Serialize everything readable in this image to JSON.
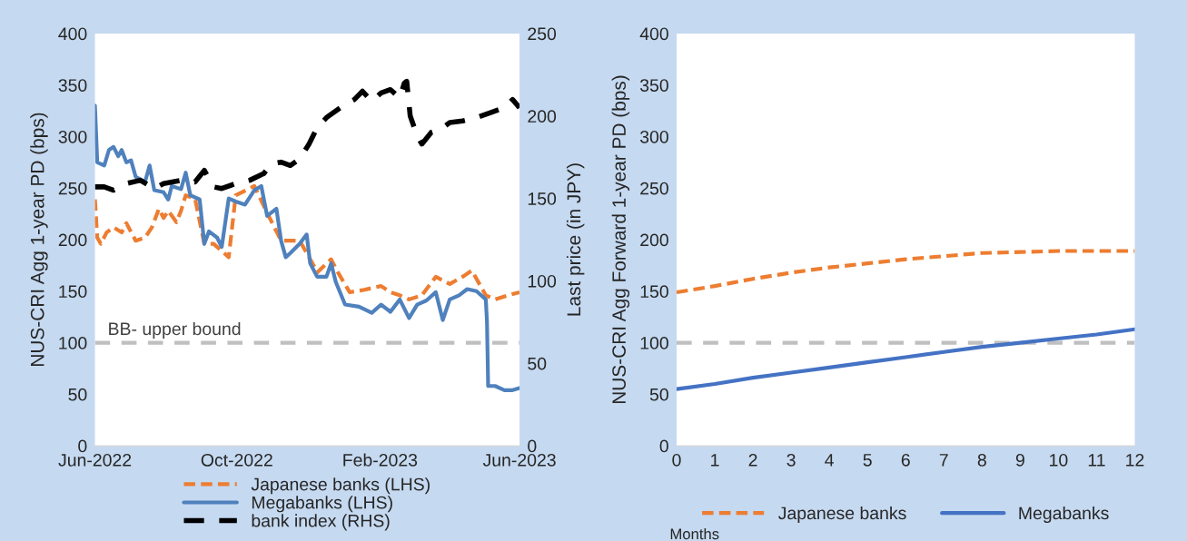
{
  "chart_data": [
    {
      "type": "line",
      "ylabel": "NUS-CRI Agg 1-year PD (bps)",
      "y2label": "Last price (in JPY)",
      "xlim": [
        "2022-06-01",
        "2023-06-01"
      ],
      "xticks": [
        {
          "value": "2022-06-01",
          "label": "Jun-2022"
        },
        {
          "value": "2022-10-01",
          "label": "Oct-2022"
        },
        {
          "value": "2023-02-01",
          "label": "Feb-2023"
        },
        {
          "value": "2023-06-01",
          "label": "Jun-2023"
        }
      ],
      "ylim": [
        0,
        400
      ],
      "yticks": [
        0,
        50,
        100,
        150,
        200,
        250,
        300,
        350,
        400
      ],
      "y2lim": [
        0,
        250
      ],
      "y2ticks": [
        0,
        50,
        100,
        150,
        200,
        250
      ],
      "grid": false,
      "legend": "bottom",
      "ref_lines": [
        {
          "axis": "y",
          "value": 100,
          "label": "BB- upper bound",
          "color": "#bfbfbf",
          "line_style": "dashed"
        }
      ],
      "series": [
        {
          "name": "Japanese banks (LHS)",
          "color": "#ed7d31",
          "line_style": "dashed",
          "x": [
            "2022-06-01",
            "2022-06-03",
            "2022-06-06",
            "2022-06-11",
            "2022-06-17",
            "2022-06-24",
            "2022-06-28",
            "2022-07-06",
            "2022-07-14",
            "2022-07-20",
            "2022-07-26",
            "2022-07-30",
            "2022-08-03",
            "2022-08-10",
            "2022-08-14",
            "2022-08-18",
            "2022-08-26",
            "2022-09-03",
            "2022-09-11",
            "2022-09-24",
            "2022-09-30",
            "2022-10-16",
            "2022-10-27",
            "2022-11-08",
            "2022-11-24",
            "2022-12-06",
            "2022-12-09",
            "2022-12-21",
            "2022-12-27",
            "2023-01-06",
            "2023-01-17",
            "2023-02-02",
            "2023-02-10",
            "2023-02-18",
            "2023-02-26",
            "2023-03-09",
            "2023-03-21",
            "2023-04-02",
            "2023-04-13",
            "2023-04-21",
            "2023-05-03",
            "2023-05-11",
            "2023-05-22",
            "2023-06-01"
          ],
          "values": [
            239,
            202,
            196,
            207,
            212,
            207,
            216,
            199,
            202,
            212,
            230,
            221,
            228,
            217,
            228,
            243,
            240,
            196,
            196,
            183,
            243,
            252,
            226,
            199,
            199,
            175,
            168,
            181,
            168,
            149,
            151,
            155,
            149,
            146,
            142,
            146,
            164,
            157,
            164,
            170,
            146,
            142,
            146,
            149
          ]
        },
        {
          "name": "Megabanks (LHS)",
          "color": "#4f81bd",
          "line_style": "solid",
          "x": [
            "2022-06-01",
            "2022-06-03",
            "2022-06-09",
            "2022-06-13",
            "2022-06-17",
            "2022-06-21",
            "2022-06-24",
            "2022-06-28",
            "2022-07-02",
            "2022-07-06",
            "2022-07-14",
            "2022-07-18",
            "2022-07-22",
            "2022-07-30",
            "2022-08-03",
            "2022-08-06",
            "2022-08-14",
            "2022-08-18",
            "2022-08-22",
            "2022-08-30",
            "2022-09-03",
            "2022-09-07",
            "2022-09-14",
            "2022-09-18",
            "2022-09-24",
            "2022-09-30",
            "2022-10-08",
            "2022-10-16",
            "2022-10-22",
            "2022-10-27",
            "2022-11-04",
            "2022-11-08",
            "2022-11-12",
            "2022-11-16",
            "2022-11-24",
            "2022-11-30",
            "2022-12-03",
            "2022-12-09",
            "2022-12-17",
            "2022-12-21",
            "2022-12-25",
            "2023-01-02",
            "2023-01-14",
            "2023-01-25",
            "2023-02-02",
            "2023-02-10",
            "2023-02-18",
            "2023-02-26",
            "2023-03-05",
            "2023-03-13",
            "2023-03-21",
            "2023-03-27",
            "2023-04-02",
            "2023-04-10",
            "2023-04-17",
            "2023-04-25",
            "2023-05-03",
            "2023-05-04",
            "2023-05-05",
            "2023-05-11",
            "2023-05-19",
            "2023-05-26",
            "2023-06-01"
          ],
          "values": [
            330,
            275,
            272,
            287,
            290,
            281,
            287,
            275,
            277,
            261,
            256,
            272,
            248,
            246,
            239,
            252,
            249,
            265,
            243,
            239,
            196,
            208,
            202,
            193,
            240,
            237,
            234,
            248,
            252,
            223,
            230,
            199,
            183,
            187,
            196,
            205,
            177,
            164,
            164,
            177,
            159,
            137,
            135,
            129,
            137,
            130,
            142,
            124,
            137,
            141,
            149,
            122,
            142,
            146,
            152,
            150,
            142,
            120,
            58,
            58,
            54,
            54,
            56
          ]
        },
        {
          "name": "bank index (RHS)",
          "color": "#000000",
          "line_style": "dashed",
          "axis": "y2",
          "x": [
            "2022-06-01",
            "2022-06-09",
            "2022-06-17",
            "2022-06-28",
            "2022-07-10",
            "2022-07-22",
            "2022-07-30",
            "2022-08-14",
            "2022-08-26",
            "2022-09-03",
            "2022-09-11",
            "2022-09-18",
            "2022-09-30",
            "2022-10-12",
            "2022-10-24",
            "2022-10-31",
            "2022-11-08",
            "2022-11-16",
            "2022-11-24",
            "2022-12-02",
            "2022-12-09",
            "2022-12-17",
            "2022-12-25",
            "2023-01-02",
            "2023-01-10",
            "2023-01-17",
            "2023-01-25",
            "2023-02-02",
            "2023-02-10",
            "2023-02-18",
            "2023-02-22",
            "2023-02-24",
            "2023-02-27",
            "2023-03-05",
            "2023-03-09",
            "2023-03-17",
            "2023-03-25",
            "2023-04-02",
            "2023-04-13",
            "2023-04-25",
            "2023-05-07",
            "2023-05-19",
            "2023-05-26",
            "2023-06-01"
          ],
          "values": [
            157,
            157,
            155,
            159,
            161,
            156,
            159,
            161,
            160,
            167,
            157,
            156,
            159,
            161,
            165,
            171,
            172,
            170,
            174,
            183,
            193,
            199,
            203,
            207,
            210,
            215,
            209,
            214,
            216,
            211,
            220,
            221,
            200,
            188,
            183,
            190,
            192,
            196,
            197,
            199,
            202,
            205,
            210,
            205
          ]
        }
      ]
    },
    {
      "type": "line",
      "ylabel": "NUS-CRI Agg Forward 1-year PD (bps)",
      "xlabel": "Months",
      "xlim": [
        0,
        12
      ],
      "xticks": [
        0,
        1,
        2,
        3,
        4,
        5,
        6,
        7,
        8,
        9,
        10,
        11,
        12
      ],
      "ylim": [
        0,
        400
      ],
      "yticks": [
        0,
        50,
        100,
        150,
        200,
        250,
        300,
        350,
        400
      ],
      "grid": false,
      "legend": "bottom",
      "ref_lines": [
        {
          "axis": "y",
          "value": 100,
          "color": "#bfbfbf",
          "line_style": "dashed"
        }
      ],
      "x": [
        0,
        1,
        2,
        3,
        4,
        5,
        6,
        7,
        8,
        9,
        10,
        11,
        12
      ],
      "series": [
        {
          "name": "Japanese banks",
          "color": "#ed7d31",
          "line_style": "dashed",
          "values": [
            149,
            155,
            162,
            168,
            173,
            177,
            181,
            184,
            187,
            188,
            189,
            189,
            189
          ]
        },
        {
          "name": "Megabanks",
          "color": "#4472c4",
          "line_style": "solid",
          "values": [
            55,
            60,
            66,
            71,
            76,
            81,
            86,
            91,
            96,
            100,
            104,
            108,
            113
          ]
        }
      ]
    }
  ]
}
